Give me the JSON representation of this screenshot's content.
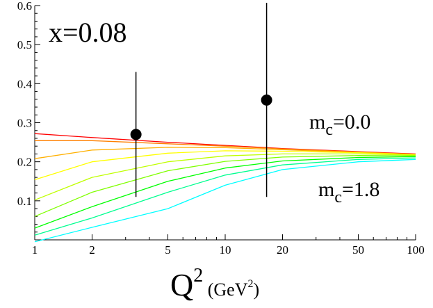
{
  "chart_data": {
    "type": "line",
    "x_scale": "log",
    "xlim": [
      1,
      100
    ],
    "ylim": [
      0,
      0.6
    ],
    "x_ticks": [
      1,
      2,
      5,
      10,
      20,
      50,
      100
    ],
    "x_tick_labels": [
      "1",
      "2",
      "5",
      "10",
      "20",
      "50",
      "100"
    ],
    "y_ticks": [
      0.1,
      0.2,
      0.3,
      0.4,
      0.5,
      0.6
    ],
    "y_tick_labels": [
      "0.1",
      "0.2",
      "0.3",
      "0.4",
      "0.5",
      "0.6"
    ],
    "grid": false,
    "panel_label": "x=0.08",
    "xlabel": {
      "base": "Q",
      "sup": "2",
      "unit_open": " (GeV",
      "unit_sup": "2",
      "unit_close": ")"
    },
    "annotations": [
      {
        "base": "m",
        "sub": "c",
        "rest": "=0.0"
      },
      {
        "base": "m",
        "sub": "c",
        "rest": "=1.8"
      }
    ],
    "series": [
      {
        "color": "#ff0000",
        "x": [
          1,
          2,
          5,
          10,
          20,
          50,
          100
        ],
        "y": [
          0.272,
          0.262,
          0.25,
          0.242,
          0.234,
          0.226,
          0.22
        ]
      },
      {
        "color": "#ff8000",
        "x": [
          1,
          2,
          5,
          10,
          20,
          50,
          100
        ],
        "y": [
          0.254,
          0.254,
          0.246,
          0.24,
          0.233,
          0.225,
          0.219
        ]
      },
      {
        "color": "#ffb000",
        "x": [
          1,
          2,
          5,
          10,
          20,
          50,
          100
        ],
        "y": [
          0.208,
          0.23,
          0.237,
          0.236,
          0.231,
          0.224,
          0.219
        ]
      },
      {
        "color": "#ffff00",
        "x": [
          1,
          2,
          5,
          10,
          20,
          50,
          100
        ],
        "y": [
          0.154,
          0.2,
          0.222,
          0.228,
          0.227,
          0.223,
          0.218
        ]
      },
      {
        "color": "#c0ff00",
        "x": [
          1,
          2,
          5,
          10,
          20,
          50,
          100
        ],
        "y": [
          0.102,
          0.16,
          0.2,
          0.215,
          0.22,
          0.22,
          0.217
        ]
      },
      {
        "color": "#80ff00",
        "x": [
          1,
          2,
          5,
          10,
          20,
          50,
          100
        ],
        "y": [
          0.06,
          0.122,
          0.177,
          0.201,
          0.212,
          0.216,
          0.215
        ]
      },
      {
        "color": "#00ff00",
        "x": [
          1,
          2,
          5,
          10,
          20,
          50,
          100
        ],
        "y": [
          0.03,
          0.085,
          0.15,
          0.184,
          0.202,
          0.211,
          0.213
        ]
      },
      {
        "color": "#00ff90",
        "x": [
          1,
          2,
          5,
          10,
          20,
          50,
          100
        ],
        "y": [
          0.012,
          0.056,
          0.122,
          0.166,
          0.192,
          0.206,
          0.21
        ]
      },
      {
        "color": "#00ffff",
        "x": [
          1,
          2,
          5,
          10,
          20,
          50,
          100
        ],
        "y": [
          -0.005,
          0.032,
          0.08,
          0.14,
          0.18,
          0.2,
          0.206
        ]
      }
    ],
    "data_points": [
      {
        "x": 3.4,
        "y": 0.27,
        "err_low": 0.11,
        "err_high": 0.43
      },
      {
        "x": 16.5,
        "y": 0.358,
        "err_low": 0.11,
        "err_high": 0.61
      }
    ]
  }
}
